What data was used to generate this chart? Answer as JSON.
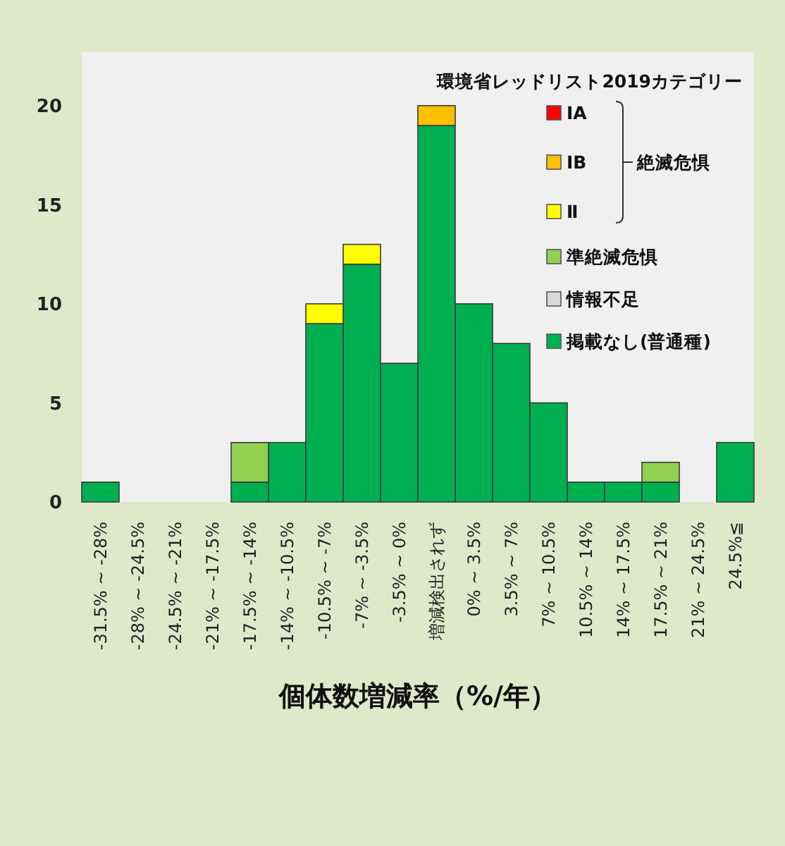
{
  "chart_data": {
    "type": "bar",
    "stacked": true,
    "xlabel": "個体数増減率（%/年）",
    "legend_title": "環境省レッドリスト2019カテゴリー",
    "legend": "top right",
    "annotations": [
      "絶滅危惧"
    ],
    "categories": [
      "-31.5% ~ -28%",
      "-28% ~ -24.5%",
      "-24.5% ~ -21%",
      "-21% ~ -17.5%",
      "-17.5% ~ -14%",
      "-14% ~ -10.5%",
      "-10.5% ~ -7%",
      "-7% ~ -3.5%",
      "-3.5% ~ 0%",
      "増減検出されず",
      "0% ~ 3.5%",
      "3.5% ~ 7%",
      "7% ~ 10.5%",
      "10.5% ~ 14%",
      "14% ~ 17.5%",
      "17.5% ~ 21%",
      "21% ~ 24.5%",
      "24.5%≦"
    ],
    "series": [
      {
        "name": "掲載なし(普通種)",
        "color": "#00b050",
        "values": [
          1,
          0,
          0,
          0,
          1,
          3,
          9,
          12,
          7,
          19,
          10,
          8,
          5,
          1,
          1,
          1,
          0,
          3
        ]
      },
      {
        "name": "情報不足",
        "color": "#d9d9d9",
        "values": [
          0,
          0,
          0,
          0,
          0,
          0,
          0,
          0,
          0,
          0,
          0,
          0,
          0,
          0,
          0,
          0,
          0,
          0
        ]
      },
      {
        "name": "準絶滅危惧",
        "color": "#92d050",
        "values": [
          0,
          0,
          0,
          0,
          2,
          0,
          0,
          0,
          0,
          0,
          0,
          0,
          0,
          0,
          0,
          1,
          0,
          0
        ]
      },
      {
        "name": "Ⅱ",
        "color": "#ffff00",
        "values": [
          0,
          0,
          0,
          0,
          0,
          0,
          1,
          1,
          0,
          0,
          0,
          0,
          0,
          0,
          0,
          0,
          0,
          0
        ]
      },
      {
        "name": "ⅠB",
        "color": "#ffc000",
        "values": [
          0,
          0,
          0,
          0,
          0,
          0,
          0,
          0,
          0,
          1,
          0,
          0,
          0,
          0,
          0,
          0,
          0,
          0
        ]
      },
      {
        "name": "ⅠA",
        "color": "#ff0000",
        "values": [
          0,
          0,
          0,
          0,
          0,
          0,
          0,
          0,
          0,
          0,
          0,
          0,
          0,
          0,
          0,
          0,
          0,
          0
        ]
      }
    ],
    "ylim": [
      0,
      22.7
    ],
    "yticks": [
      0,
      5,
      10,
      15,
      20
    ],
    "grid": false
  }
}
